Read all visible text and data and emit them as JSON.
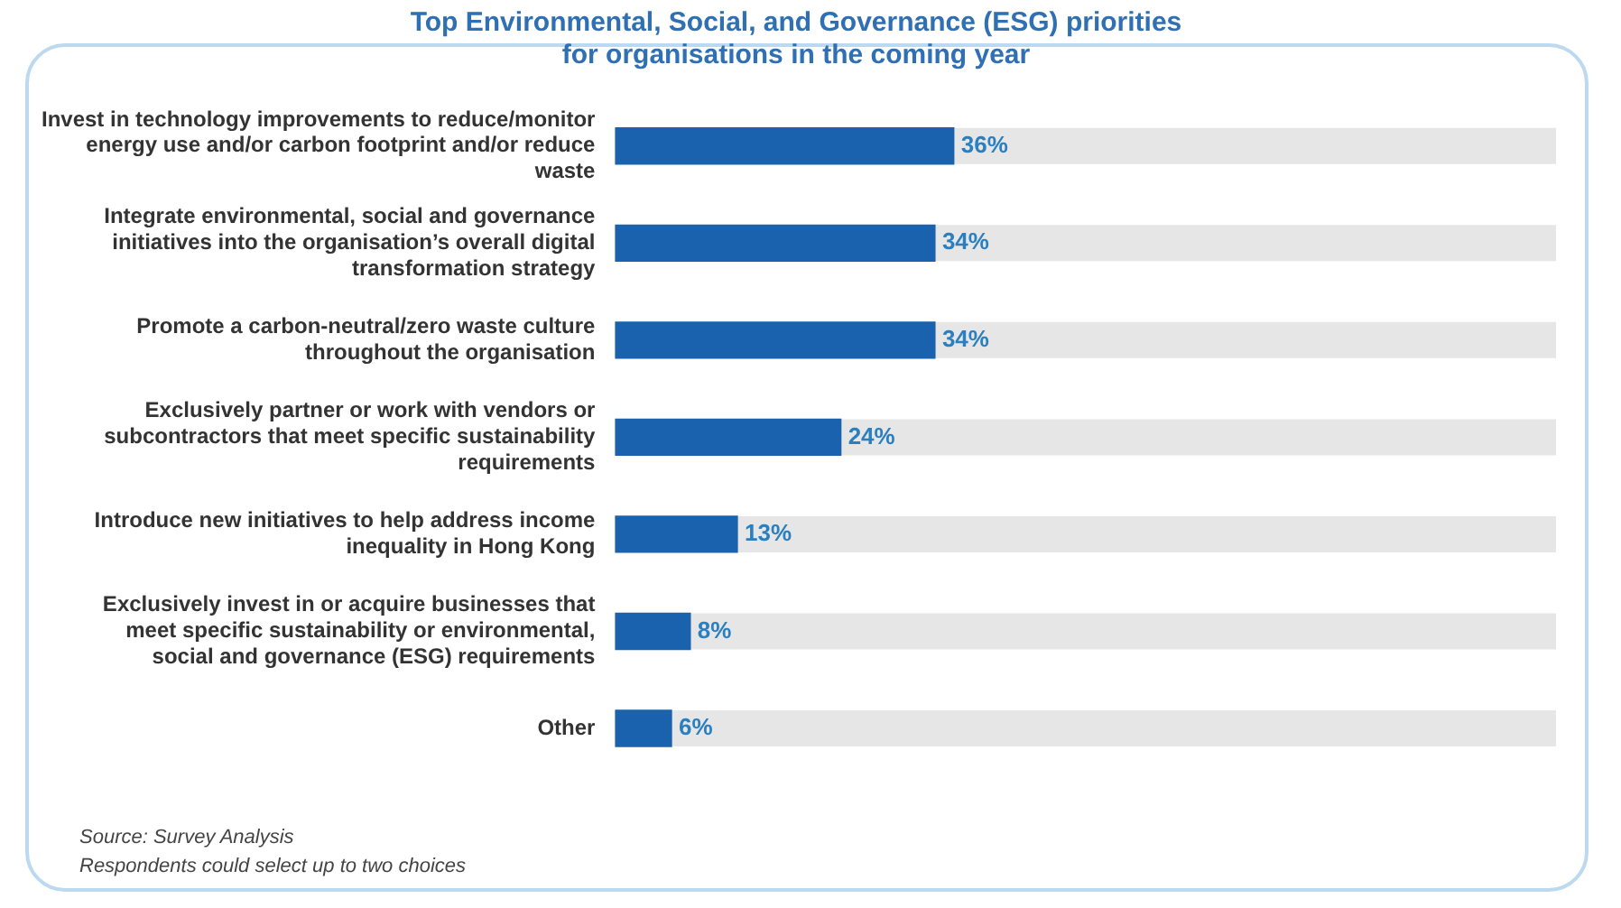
{
  "chart_data": {
    "type": "bar",
    "orientation": "horizontal",
    "title": "Top Environmental, Social, and Governance (ESG) priorities for organisations in the coming year",
    "categories": [
      "Invest in technology improvements to reduce/monitor energy use and/or carbon footprint and/or reduce waste",
      "Integrate environmental, social and governance initiatives into the organisation’s overall digital transformation strategy",
      "Promote a carbon-neutral/zero waste culture throughout the organisation",
      "Exclusively partner or work with vendors or subcontractors that meet specific sustainability requirements",
      "Introduce new initiatives to help address income inequality in Hong Kong",
      "Exclusively invest in or acquire businesses that meet specific sustainability or environmental, social and governance (ESG) requirements",
      "Other"
    ],
    "values": [
      36,
      34,
      34,
      24,
      13,
      8,
      6
    ],
    "value_labels": [
      "36%",
      "34%",
      "34%",
      "24%",
      "13%",
      "8%",
      "6%"
    ],
    "color": "#1a62ad",
    "xlim": [
      0,
      100
    ],
    "tick_labels": "y",
    "grid": false,
    "legend": false,
    "annotations": [
      "Source: Survey Analysis",
      "Respondents could select up to two choices"
    ]
  }
}
